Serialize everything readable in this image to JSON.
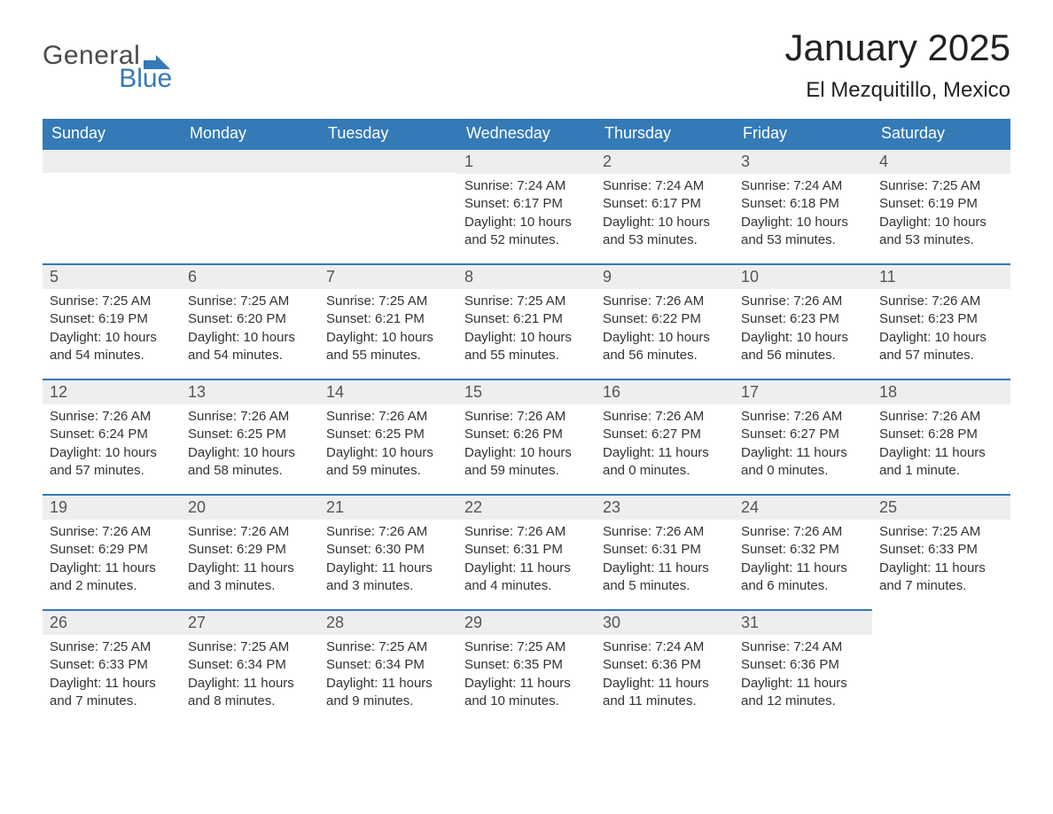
{
  "brand": {
    "line1": "General",
    "line2": "Blue",
    "color_text": "#4a4a4a",
    "color_accent": "#337ab7"
  },
  "title": "January 2025",
  "location": "El Mezquitillo, Mexico",
  "colors": {
    "header_bg": "#337ab7",
    "header_text": "#ffffff",
    "daynum_bg": "#eeeeee",
    "daynum_border": "#337ab7",
    "body_text": "#333333",
    "page_bg": "#ffffff"
  },
  "fonts": {
    "title_size": 42,
    "location_size": 24,
    "dayhead_size": 18,
    "daynum_size": 18,
    "body_size": 15
  },
  "day_headers": [
    "Sunday",
    "Monday",
    "Tuesday",
    "Wednesday",
    "Thursday",
    "Friday",
    "Saturday"
  ],
  "labels": {
    "sunrise": "Sunrise:",
    "sunset": "Sunset:",
    "daylight": "Daylight:"
  },
  "weeks": [
    [
      null,
      null,
      null,
      {
        "day": "1",
        "sunrise": "7:24 AM",
        "sunset": "6:17 PM",
        "daylight": "10 hours and 52 minutes."
      },
      {
        "day": "2",
        "sunrise": "7:24 AM",
        "sunset": "6:17 PM",
        "daylight": "10 hours and 53 minutes."
      },
      {
        "day": "3",
        "sunrise": "7:24 AM",
        "sunset": "6:18 PM",
        "daylight": "10 hours and 53 minutes."
      },
      {
        "day": "4",
        "sunrise": "7:25 AM",
        "sunset": "6:19 PM",
        "daylight": "10 hours and 53 minutes."
      }
    ],
    [
      {
        "day": "5",
        "sunrise": "7:25 AM",
        "sunset": "6:19 PM",
        "daylight": "10 hours and 54 minutes."
      },
      {
        "day": "6",
        "sunrise": "7:25 AM",
        "sunset": "6:20 PM",
        "daylight": "10 hours and 54 minutes."
      },
      {
        "day": "7",
        "sunrise": "7:25 AM",
        "sunset": "6:21 PM",
        "daylight": "10 hours and 55 minutes."
      },
      {
        "day": "8",
        "sunrise": "7:25 AM",
        "sunset": "6:21 PM",
        "daylight": "10 hours and 55 minutes."
      },
      {
        "day": "9",
        "sunrise": "7:26 AM",
        "sunset": "6:22 PM",
        "daylight": "10 hours and 56 minutes."
      },
      {
        "day": "10",
        "sunrise": "7:26 AM",
        "sunset": "6:23 PM",
        "daylight": "10 hours and 56 minutes."
      },
      {
        "day": "11",
        "sunrise": "7:26 AM",
        "sunset": "6:23 PM",
        "daylight": "10 hours and 57 minutes."
      }
    ],
    [
      {
        "day": "12",
        "sunrise": "7:26 AM",
        "sunset": "6:24 PM",
        "daylight": "10 hours and 57 minutes."
      },
      {
        "day": "13",
        "sunrise": "7:26 AM",
        "sunset": "6:25 PM",
        "daylight": "10 hours and 58 minutes."
      },
      {
        "day": "14",
        "sunrise": "7:26 AM",
        "sunset": "6:25 PM",
        "daylight": "10 hours and 59 minutes."
      },
      {
        "day": "15",
        "sunrise": "7:26 AM",
        "sunset": "6:26 PM",
        "daylight": "10 hours and 59 minutes."
      },
      {
        "day": "16",
        "sunrise": "7:26 AM",
        "sunset": "6:27 PM",
        "daylight": "11 hours and 0 minutes."
      },
      {
        "day": "17",
        "sunrise": "7:26 AM",
        "sunset": "6:27 PM",
        "daylight": "11 hours and 0 minutes."
      },
      {
        "day": "18",
        "sunrise": "7:26 AM",
        "sunset": "6:28 PM",
        "daylight": "11 hours and 1 minute."
      }
    ],
    [
      {
        "day": "19",
        "sunrise": "7:26 AM",
        "sunset": "6:29 PM",
        "daylight": "11 hours and 2 minutes."
      },
      {
        "day": "20",
        "sunrise": "7:26 AM",
        "sunset": "6:29 PM",
        "daylight": "11 hours and 3 minutes."
      },
      {
        "day": "21",
        "sunrise": "7:26 AM",
        "sunset": "6:30 PM",
        "daylight": "11 hours and 3 minutes."
      },
      {
        "day": "22",
        "sunrise": "7:26 AM",
        "sunset": "6:31 PM",
        "daylight": "11 hours and 4 minutes."
      },
      {
        "day": "23",
        "sunrise": "7:26 AM",
        "sunset": "6:31 PM",
        "daylight": "11 hours and 5 minutes."
      },
      {
        "day": "24",
        "sunrise": "7:26 AM",
        "sunset": "6:32 PM",
        "daylight": "11 hours and 6 minutes."
      },
      {
        "day": "25",
        "sunrise": "7:25 AM",
        "sunset": "6:33 PM",
        "daylight": "11 hours and 7 minutes."
      }
    ],
    [
      {
        "day": "26",
        "sunrise": "7:25 AM",
        "sunset": "6:33 PM",
        "daylight": "11 hours and 7 minutes."
      },
      {
        "day": "27",
        "sunrise": "7:25 AM",
        "sunset": "6:34 PM",
        "daylight": "11 hours and 8 minutes."
      },
      {
        "day": "28",
        "sunrise": "7:25 AM",
        "sunset": "6:34 PM",
        "daylight": "11 hours and 9 minutes."
      },
      {
        "day": "29",
        "sunrise": "7:25 AM",
        "sunset": "6:35 PM",
        "daylight": "11 hours and 10 minutes."
      },
      {
        "day": "30",
        "sunrise": "7:24 AM",
        "sunset": "6:36 PM",
        "daylight": "11 hours and 11 minutes."
      },
      {
        "day": "31",
        "sunrise": "7:24 AM",
        "sunset": "6:36 PM",
        "daylight": "11 hours and 12 minutes."
      },
      null
    ]
  ]
}
